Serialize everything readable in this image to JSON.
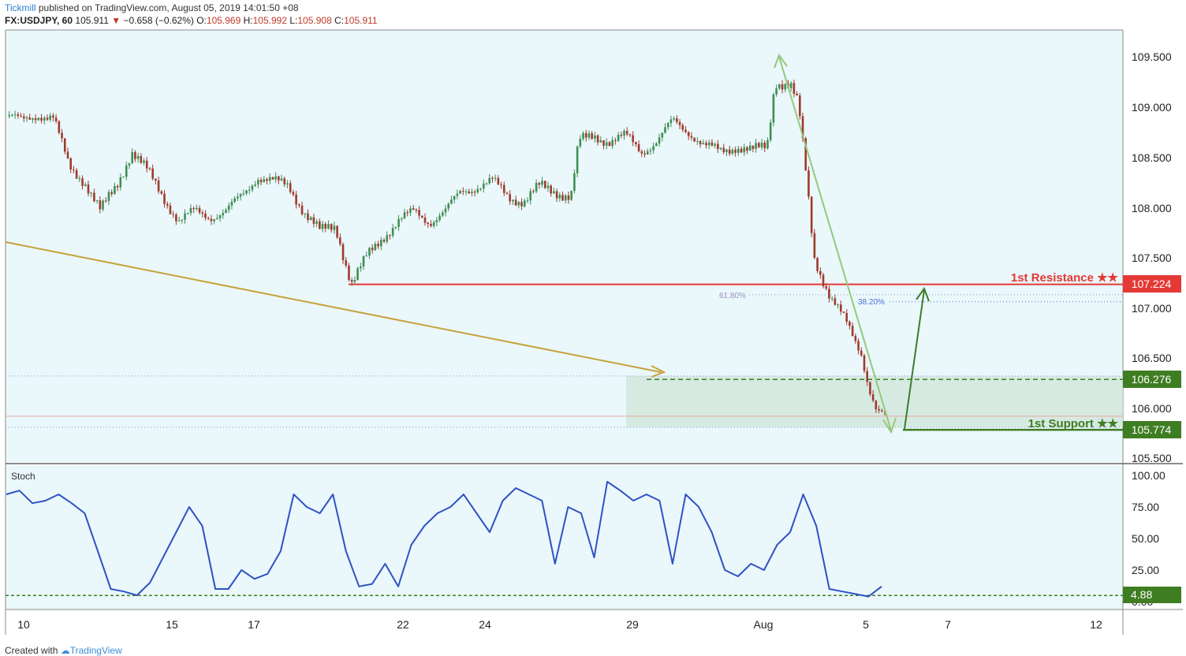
{
  "header": {
    "publisher": "Tickmill",
    "published_text": " published on TradingView.com, August 05, 2019 14:01:50 +08"
  },
  "ohlc": {
    "symbol": "FX:USDJPY, 60",
    "last": "105.911",
    "arrow": "▼",
    "change": "−0.658 (−0.62%)",
    "o_label": "O:",
    "o": "105.969",
    "h_label": "H:",
    "h": "105.992",
    "l_label": "L:",
    "l": "105.908",
    "c_label": "C:",
    "c": "105.911"
  },
  "footer": {
    "created_with": "Created with",
    "brand": "TradingView"
  },
  "colors": {
    "background": "#eaf7fb",
    "bull": "#3f8f53",
    "bear": "#a03a2c",
    "resistance": "#e53935",
    "support": "#3f7d22",
    "stoch": "#2f52c4",
    "fib_arrow": "#94c97a",
    "projection": "#c7a23a"
  },
  "chart_data": [
    {
      "type": "candlestick",
      "title": "FX:USDJPY, 60",
      "x_tick_labels": [
        "10",
        "15",
        "17",
        "22",
        "24",
        "29",
        "Aug",
        "5",
        "7",
        "12"
      ],
      "y_ticks": [
        "109.500",
        "109.000",
        "108.500",
        "108.000",
        "107.500",
        "107.000",
        "106.500",
        "106.000",
        "105.500"
      ],
      "ylim": [
        105.4,
        109.9
      ],
      "price_path": [
        {
          "x": 0,
          "y": 108.9
        },
        {
          "x": 2,
          "y": 108.85
        },
        {
          "x": 4,
          "y": 108.92
        },
        {
          "x": 6,
          "y": 108.88
        },
        {
          "x": 8,
          "y": 108.4
        },
        {
          "x": 10,
          "y": 108.25
        },
        {
          "x": 12,
          "y": 107.95
        },
        {
          "x": 14,
          "y": 108.2
        },
        {
          "x": 16,
          "y": 108.55
        },
        {
          "x": 18,
          "y": 108.35
        },
        {
          "x": 20,
          "y": 108.1
        },
        {
          "x": 22,
          "y": 107.85
        },
        {
          "x": 24,
          "y": 107.95
        },
        {
          "x": 26,
          "y": 107.9
        },
        {
          "x": 28,
          "y": 107.95
        },
        {
          "x": 30,
          "y": 108.1
        },
        {
          "x": 32,
          "y": 108.3
        },
        {
          "x": 34,
          "y": 108.25
        },
        {
          "x": 36,
          "y": 108.2
        },
        {
          "x": 38,
          "y": 107.95
        },
        {
          "x": 40,
          "y": 107.75
        },
        {
          "x": 42,
          "y": 107.8
        },
        {
          "x": 44,
          "y": 107.23
        },
        {
          "x": 46,
          "y": 107.5
        },
        {
          "x": 48,
          "y": 107.7
        },
        {
          "x": 50,
          "y": 107.85
        },
        {
          "x": 52,
          "y": 107.95
        },
        {
          "x": 54,
          "y": 107.85
        },
        {
          "x": 56,
          "y": 107.95
        },
        {
          "x": 58,
          "y": 108.15
        },
        {
          "x": 60,
          "y": 108.2
        },
        {
          "x": 62,
          "y": 108.25
        },
        {
          "x": 64,
          "y": 108.1
        },
        {
          "x": 66,
          "y": 108.05
        },
        {
          "x": 68,
          "y": 108.2
        },
        {
          "x": 70,
          "y": 108.15
        },
        {
          "x": 72,
          "y": 108.1
        },
        {
          "x": 73,
          "y": 108.65
        },
        {
          "x": 75,
          "y": 108.7
        },
        {
          "x": 77,
          "y": 108.65
        },
        {
          "x": 79,
          "y": 108.7
        },
        {
          "x": 81,
          "y": 108.55
        },
        {
          "x": 83,
          "y": 108.65
        },
        {
          "x": 85,
          "y": 108.85
        },
        {
          "x": 87,
          "y": 108.75
        },
        {
          "x": 89,
          "y": 108.6
        },
        {
          "x": 91,
          "y": 108.55
        },
        {
          "x": 93,
          "y": 108.6
        },
        {
          "x": 95,
          "y": 108.55
        },
        {
          "x": 97,
          "y": 108.6
        },
        {
          "x": 98,
          "y": 109.25
        },
        {
          "x": 100,
          "y": 109.2
        },
        {
          "x": 101,
          "y": 109.0
        },
        {
          "x": 102,
          "y": 108.3
        },
        {
          "x": 103,
          "y": 107.5
        },
        {
          "x": 105,
          "y": 107.1
        },
        {
          "x": 107,
          "y": 106.85
        },
        {
          "x": 109,
          "y": 106.55
        },
        {
          "x": 110,
          "y": 106.2
        },
        {
          "x": 111,
          "y": 105.95
        },
        {
          "x": 112,
          "y": 105.91
        }
      ],
      "levels": [
        {
          "name": "1st Resistance ★★",
          "value": 107.224
        },
        {
          "name": "",
          "value": 106.276
        },
        {
          "name": "1st Support ★★",
          "value": 105.774
        }
      ],
      "price_labels": [
        "107.224",
        "106.276",
        "105.774"
      ],
      "fib_labels": [
        "61.80%",
        "38.20%"
      ],
      "fib_levels": [
        107.12,
        107.05
      ],
      "support_zone": [
        105.8,
        106.31
      ]
    },
    {
      "type": "line",
      "title": "Stoch",
      "y_ticks": [
        "100.00",
        "75.00",
        "50.00",
        "25.00",
        "0.00"
      ],
      "ylim": [
        -10,
        105
      ],
      "level_label": "4.88",
      "level_value": 4.88,
      "series": [
        {
          "values": [
            85,
            88,
            78,
            80,
            85,
            78,
            70,
            40,
            10,
            8,
            5,
            15,
            35,
            55,
            75,
            60,
            10,
            10,
            25,
            18,
            22,
            40,
            85,
            75,
            70,
            85,
            40,
            12,
            14,
            30,
            12,
            45,
            60,
            70,
            75,
            85,
            70,
            55,
            80,
            90,
            85,
            80,
            30,
            75,
            70,
            35,
            95,
            88,
            80,
            85,
            80,
            30,
            85,
            75,
            55,
            25,
            20,
            30,
            25,
            45,
            55,
            85,
            60,
            10,
            8,
            6,
            4,
            12
          ]
        }
      ]
    }
  ]
}
